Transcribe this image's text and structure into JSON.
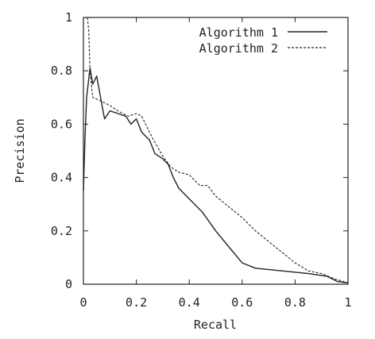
{
  "chart_data": {
    "type": "line",
    "xlabel": "Recall",
    "ylabel": "Precision",
    "xlim": [
      0,
      1
    ],
    "ylim": [
      0,
      1
    ],
    "x_ticks": [
      "0",
      "0.2",
      "0.4",
      "0.6",
      "0.8",
      "1"
    ],
    "y_ticks": [
      "0",
      "0.2",
      "0.4",
      "0.6",
      "0.8",
      "1"
    ],
    "grid": false,
    "legend": "top-right",
    "series": [
      {
        "name": "Algorithm 1",
        "style": "solid",
        "color": "#222222",
        "points": [
          [
            0.0,
            0.35
          ],
          [
            0.006,
            0.55
          ],
          [
            0.012,
            0.7
          ],
          [
            0.025,
            0.81
          ],
          [
            0.035,
            0.75
          ],
          [
            0.05,
            0.78
          ],
          [
            0.065,
            0.7
          ],
          [
            0.08,
            0.62
          ],
          [
            0.1,
            0.65
          ],
          [
            0.13,
            0.64
          ],
          [
            0.16,
            0.63
          ],
          [
            0.18,
            0.6
          ],
          [
            0.2,
            0.62
          ],
          [
            0.22,
            0.57
          ],
          [
            0.25,
            0.54
          ],
          [
            0.27,
            0.49
          ],
          [
            0.3,
            0.47
          ],
          [
            0.32,
            0.45
          ],
          [
            0.34,
            0.4
          ],
          [
            0.36,
            0.36
          ],
          [
            0.4,
            0.32
          ],
          [
            0.45,
            0.27
          ],
          [
            0.5,
            0.2
          ],
          [
            0.55,
            0.14
          ],
          [
            0.6,
            0.08
          ],
          [
            0.65,
            0.06
          ],
          [
            0.75,
            0.05
          ],
          [
            0.85,
            0.04
          ],
          [
            0.92,
            0.03
          ],
          [
            0.96,
            0.01
          ],
          [
            1.0,
            0.005
          ]
        ]
      },
      {
        "name": "Algorithm 2",
        "style": "dashed",
        "color": "#222222",
        "points": [
          [
            0.015,
            1.0
          ],
          [
            0.02,
            0.95
          ],
          [
            0.025,
            0.8
          ],
          [
            0.035,
            0.7
          ],
          [
            0.06,
            0.69
          ],
          [
            0.08,
            0.68
          ],
          [
            0.1,
            0.67
          ],
          [
            0.13,
            0.65
          ],
          [
            0.17,
            0.63
          ],
          [
            0.2,
            0.64
          ],
          [
            0.22,
            0.63
          ],
          [
            0.26,
            0.55
          ],
          [
            0.3,
            0.48
          ],
          [
            0.33,
            0.44
          ],
          [
            0.36,
            0.42
          ],
          [
            0.4,
            0.41
          ],
          [
            0.44,
            0.37
          ],
          [
            0.47,
            0.37
          ],
          [
            0.5,
            0.33
          ],
          [
            0.55,
            0.29
          ],
          [
            0.6,
            0.25
          ],
          [
            0.65,
            0.2
          ],
          [
            0.7,
            0.16
          ],
          [
            0.75,
            0.12
          ],
          [
            0.8,
            0.08
          ],
          [
            0.85,
            0.05
          ],
          [
            0.9,
            0.04
          ],
          [
            0.95,
            0.02
          ],
          [
            1.0,
            0.005
          ]
        ]
      }
    ]
  }
}
